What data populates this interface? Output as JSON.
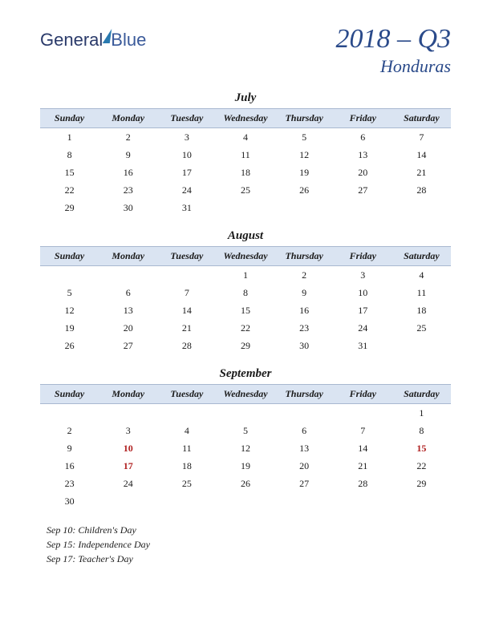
{
  "logo": {
    "text1": "General",
    "text2": "Blue"
  },
  "title": {
    "main": "2018 – Q3",
    "sub": "Honduras"
  },
  "weekdays": [
    "Sunday",
    "Monday",
    "Tuesday",
    "Wednesday",
    "Thursday",
    "Friday",
    "Saturday"
  ],
  "header_bg": "#dae4f2",
  "header_border": "#a8b8d0",
  "title_color": "#2a4a8a",
  "holiday_color": "#b02020",
  "months": [
    {
      "name": "July",
      "weeks": [
        [
          "1",
          "2",
          "3",
          "4",
          "5",
          "6",
          "7"
        ],
        [
          "8",
          "9",
          "10",
          "11",
          "12",
          "13",
          "14"
        ],
        [
          "15",
          "16",
          "17",
          "18",
          "19",
          "20",
          "21"
        ],
        [
          "22",
          "23",
          "24",
          "25",
          "26",
          "27",
          "28"
        ],
        [
          "29",
          "30",
          "31",
          "",
          "",
          "",
          ""
        ]
      ],
      "holidays_cells": []
    },
    {
      "name": "August",
      "weeks": [
        [
          "",
          "",
          "",
          "1",
          "2",
          "3",
          "4"
        ],
        [
          "5",
          "6",
          "7",
          "8",
          "9",
          "10",
          "11"
        ],
        [
          "12",
          "13",
          "14",
          "15",
          "16",
          "17",
          "18"
        ],
        [
          "19",
          "20",
          "21",
          "22",
          "23",
          "24",
          "25"
        ],
        [
          "26",
          "27",
          "28",
          "29",
          "30",
          "31",
          ""
        ]
      ],
      "holidays_cells": []
    },
    {
      "name": "September",
      "weeks": [
        [
          "",
          "",
          "",
          "",
          "",
          "",
          "1"
        ],
        [
          "2",
          "3",
          "4",
          "5",
          "6",
          "7",
          "8"
        ],
        [
          "9",
          "10",
          "11",
          "12",
          "13",
          "14",
          "15"
        ],
        [
          "16",
          "17",
          "18",
          "19",
          "20",
          "21",
          "22"
        ],
        [
          "23",
          "24",
          "25",
          "26",
          "27",
          "28",
          "29"
        ],
        [
          "30",
          "",
          "",
          "",
          "",
          "",
          ""
        ]
      ],
      "holidays_cells": [
        [
          2,
          1
        ],
        [
          2,
          6
        ],
        [
          3,
          1
        ]
      ]
    }
  ],
  "holiday_list": [
    "Sep 10: Children's Day",
    "Sep 15: Independence Day",
    "Sep 17: Teacher's Day"
  ]
}
